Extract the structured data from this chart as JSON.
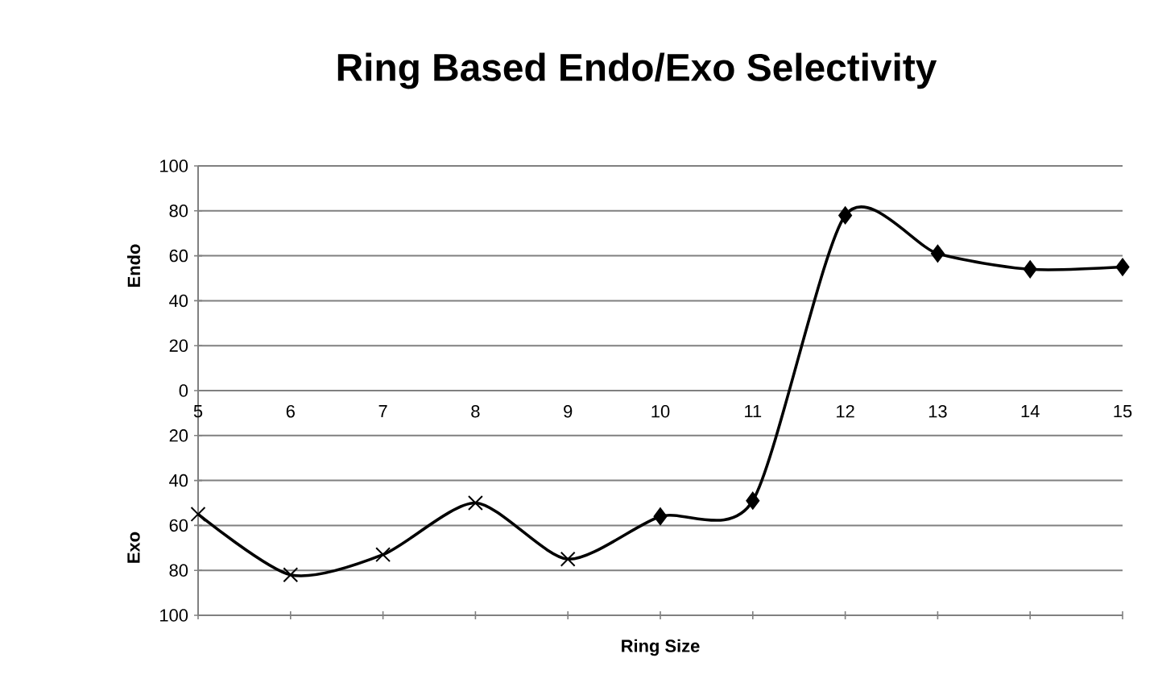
{
  "chart_data": {
    "type": "line",
    "title": "Ring Based Endo/Exo Selectivity",
    "xlabel": "Ring Size",
    "ylabel": "Endo",
    "annotations": [
      "Exo"
    ],
    "xlim": [
      5,
      15
    ],
    "xticks": [
      5,
      6,
      7,
      8,
      9,
      10,
      11,
      12,
      13,
      14,
      15
    ],
    "ylim": [
      -100,
      100
    ],
    "yticks": [
      {
        "value": -100,
        "label": "100"
      },
      {
        "value": -80,
        "label": "80"
      },
      {
        "value": -60,
        "label": "60"
      },
      {
        "value": -40,
        "label": "40"
      },
      {
        "value": -20,
        "label": "20"
      },
      0,
      20,
      40,
      60,
      80,
      100
    ],
    "grid": "y",
    "series": [
      {
        "marker": "none",
        "color": "#000000",
        "x": [
          5,
          6,
          7,
          8,
          9,
          10,
          11,
          12,
          13,
          14,
          15
        ],
        "values": [
          -55,
          -82,
          -73,
          -50,
          -75,
          -56,
          -49,
          78,
          61,
          54,
          55
        ]
      },
      {
        "type": "scatter",
        "marker": "cross",
        "color": "#000000",
        "x": [
          5,
          6,
          7,
          8,
          9
        ],
        "values": [
          -55,
          -82,
          -73,
          -50,
          -75
        ]
      },
      {
        "type": "scatter",
        "marker": "diamond",
        "color": "#000000",
        "x": [
          10,
          11,
          12,
          13,
          14,
          15
        ],
        "values": [
          -56,
          -49,
          78,
          61,
          54,
          55
        ]
      }
    ]
  }
}
